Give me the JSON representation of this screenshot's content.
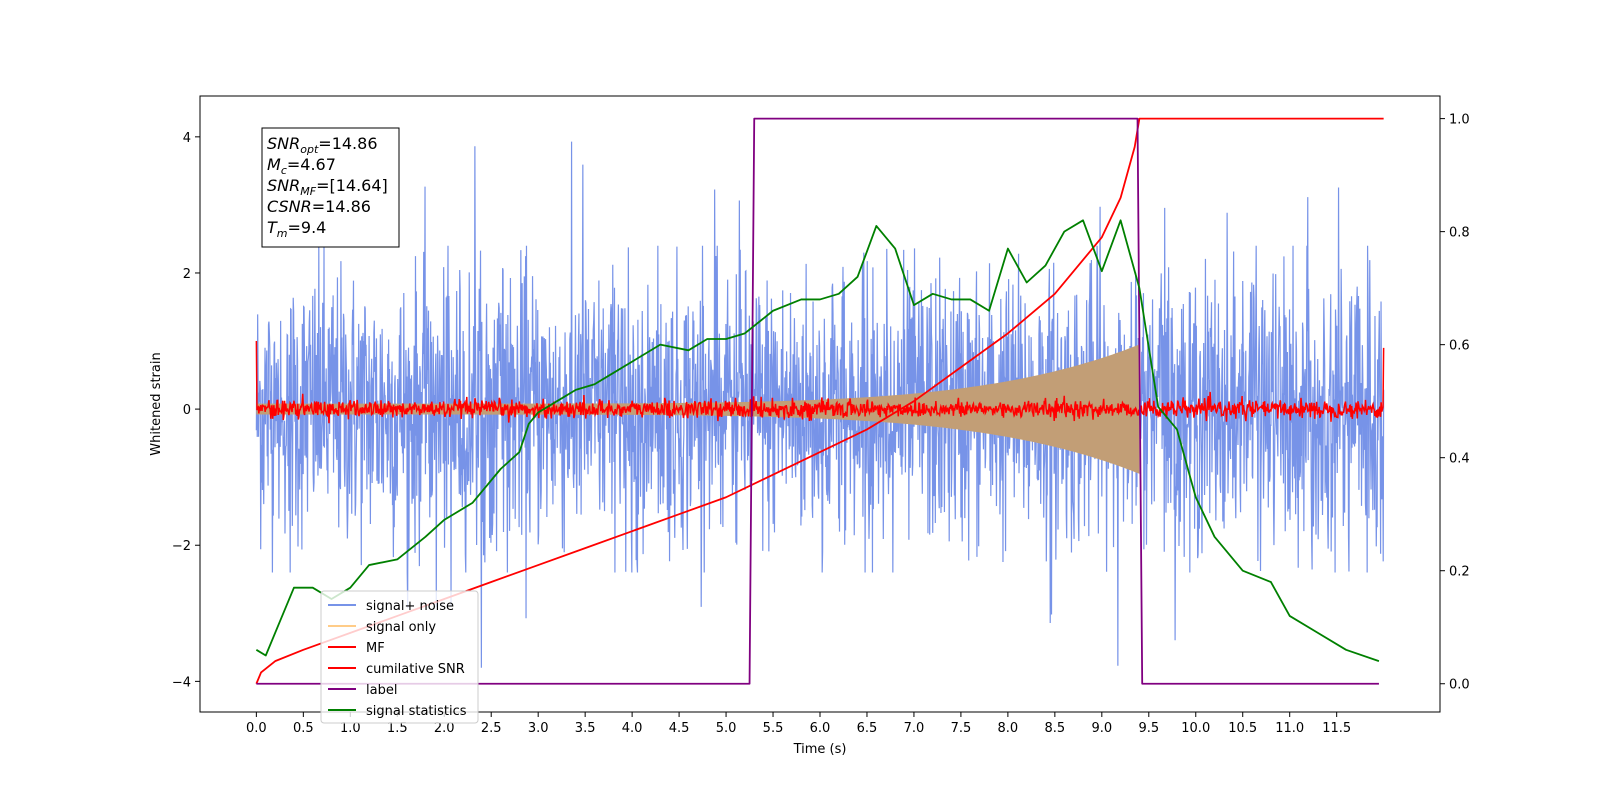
{
  "chart_data": {
    "type": "line",
    "xlabel": "Time (s)",
    "ylabel": "Whitened strain",
    "xlim": [
      -0.6,
      12.6
    ],
    "ylim": [
      -4.45,
      4.6
    ],
    "y2lim": [
      -0.05,
      1.04
    ],
    "x_ticks": [
      "0.0",
      "0.5",
      "1.0",
      "1.5",
      "2.0",
      "2.5",
      "3.0",
      "3.5",
      "4.0",
      "4.5",
      "5.0",
      "5.5",
      "6.0",
      "6.5",
      "7.0",
      "7.5",
      "8.0",
      "8.5",
      "9.0",
      "9.5",
      "10.0",
      "10.5",
      "11.0",
      "11.5"
    ],
    "y_ticks": [
      "−4",
      "−2",
      "0",
      "2",
      "4"
    ],
    "y2_ticks": [
      "0.0",
      "0.2",
      "0.4",
      "0.6",
      "0.8",
      "1.0"
    ],
    "annotation": {
      "lines": [
        {
          "sym": "SNR",
          "sub": "opt",
          "rest": "=14.86"
        },
        {
          "sym": "M",
          "sub": "c",
          "rest": "=4.67"
        },
        {
          "sym": "SNR",
          "sub": "MF",
          "rest": "=[14.64]"
        },
        {
          "sym": "CSNR",
          "sub": "",
          "rest": "=14.86"
        },
        {
          "sym": "T",
          "sub": "m",
          "rest": "=9.4"
        }
      ]
    },
    "legend": {
      "placement": "lower-left",
      "entries": [
        "signal+ noise",
        "signal only",
        "MF",
        "cumilative SNR",
        "label",
        "signal statistics"
      ]
    },
    "series": [
      {
        "name": "signal+ noise",
        "color": "#7793e8",
        "axis": "left",
        "kind": "noise",
        "x_start": 0.0,
        "x_end": 12.0,
        "envelope": 2.4,
        "peak_max": 4.2,
        "peak_min": -3.8
      },
      {
        "name": "signal only",
        "color": "#c29e76",
        "axis": "left",
        "kind": "chirp",
        "x_start": 0.0,
        "x_end": 9.4,
        "amplitude_start": 0.08,
        "amplitude_end": 0.95
      },
      {
        "name": "MF",
        "color": "#ff0000",
        "axis": "left",
        "kind": "mf",
        "x_start": 0.0,
        "x_end": 12.0,
        "noise_amplitude": 0.12,
        "edge_value": 1.0
      },
      {
        "name": "cumilative SNR",
        "color": "#ff0000",
        "axis": "right",
        "x": [
          0.0,
          0.05,
          0.2,
          0.5,
          1.0,
          1.5,
          2.0,
          2.5,
          3.0,
          3.5,
          4.0,
          4.5,
          5.0,
          5.5,
          6.0,
          6.5,
          7.0,
          7.5,
          8.0,
          8.5,
          9.0,
          9.2,
          9.35,
          9.4,
          10.0,
          11.0,
          12.0
        ],
        "values": [
          0.0,
          0.02,
          0.04,
          0.06,
          0.09,
          0.12,
          0.15,
          0.18,
          0.21,
          0.24,
          0.27,
          0.3,
          0.33,
          0.37,
          0.41,
          0.45,
          0.5,
          0.56,
          0.62,
          0.69,
          0.79,
          0.86,
          0.95,
          1.0,
          1.0,
          1.0,
          1.0
        ]
      },
      {
        "name": "label",
        "color": "#800080",
        "axis": "right",
        "x": [
          0.0,
          5.25,
          5.3,
          9.38,
          9.43,
          11.95
        ],
        "values": [
          0.0,
          0.0,
          1.0,
          1.0,
          0.0,
          0.0
        ]
      },
      {
        "name": "signal statistics",
        "color": "#008000",
        "axis": "right",
        "x": [
          0.0,
          0.1,
          0.25,
          0.4,
          0.6,
          0.8,
          1.0,
          1.2,
          1.5,
          1.8,
          2.0,
          2.3,
          2.6,
          2.8,
          2.9,
          3.0,
          3.2,
          3.4,
          3.6,
          3.8,
          4.0,
          4.3,
          4.6,
          4.8,
          5.0,
          5.2,
          5.5,
          5.8,
          6.0,
          6.2,
          6.4,
          6.6,
          6.8,
          7.0,
          7.2,
          7.4,
          7.6,
          7.8,
          8.0,
          8.2,
          8.4,
          8.6,
          8.8,
          9.0,
          9.2,
          9.4,
          9.6,
          9.8,
          10.0,
          10.2,
          10.5,
          10.8,
          11.0,
          11.3,
          11.6,
          11.95
        ],
        "values": [
          0.06,
          0.05,
          0.11,
          0.17,
          0.17,
          0.15,
          0.17,
          0.21,
          0.22,
          0.26,
          0.29,
          0.32,
          0.38,
          0.41,
          0.46,
          0.48,
          0.5,
          0.52,
          0.53,
          0.55,
          0.57,
          0.6,
          0.59,
          0.61,
          0.61,
          0.62,
          0.66,
          0.68,
          0.68,
          0.69,
          0.72,
          0.81,
          0.77,
          0.67,
          0.69,
          0.68,
          0.68,
          0.66,
          0.77,
          0.71,
          0.74,
          0.8,
          0.82,
          0.73,
          0.82,
          0.7,
          0.49,
          0.45,
          0.33,
          0.26,
          0.2,
          0.18,
          0.12,
          0.09,
          0.06,
          0.04
        ]
      }
    ]
  }
}
